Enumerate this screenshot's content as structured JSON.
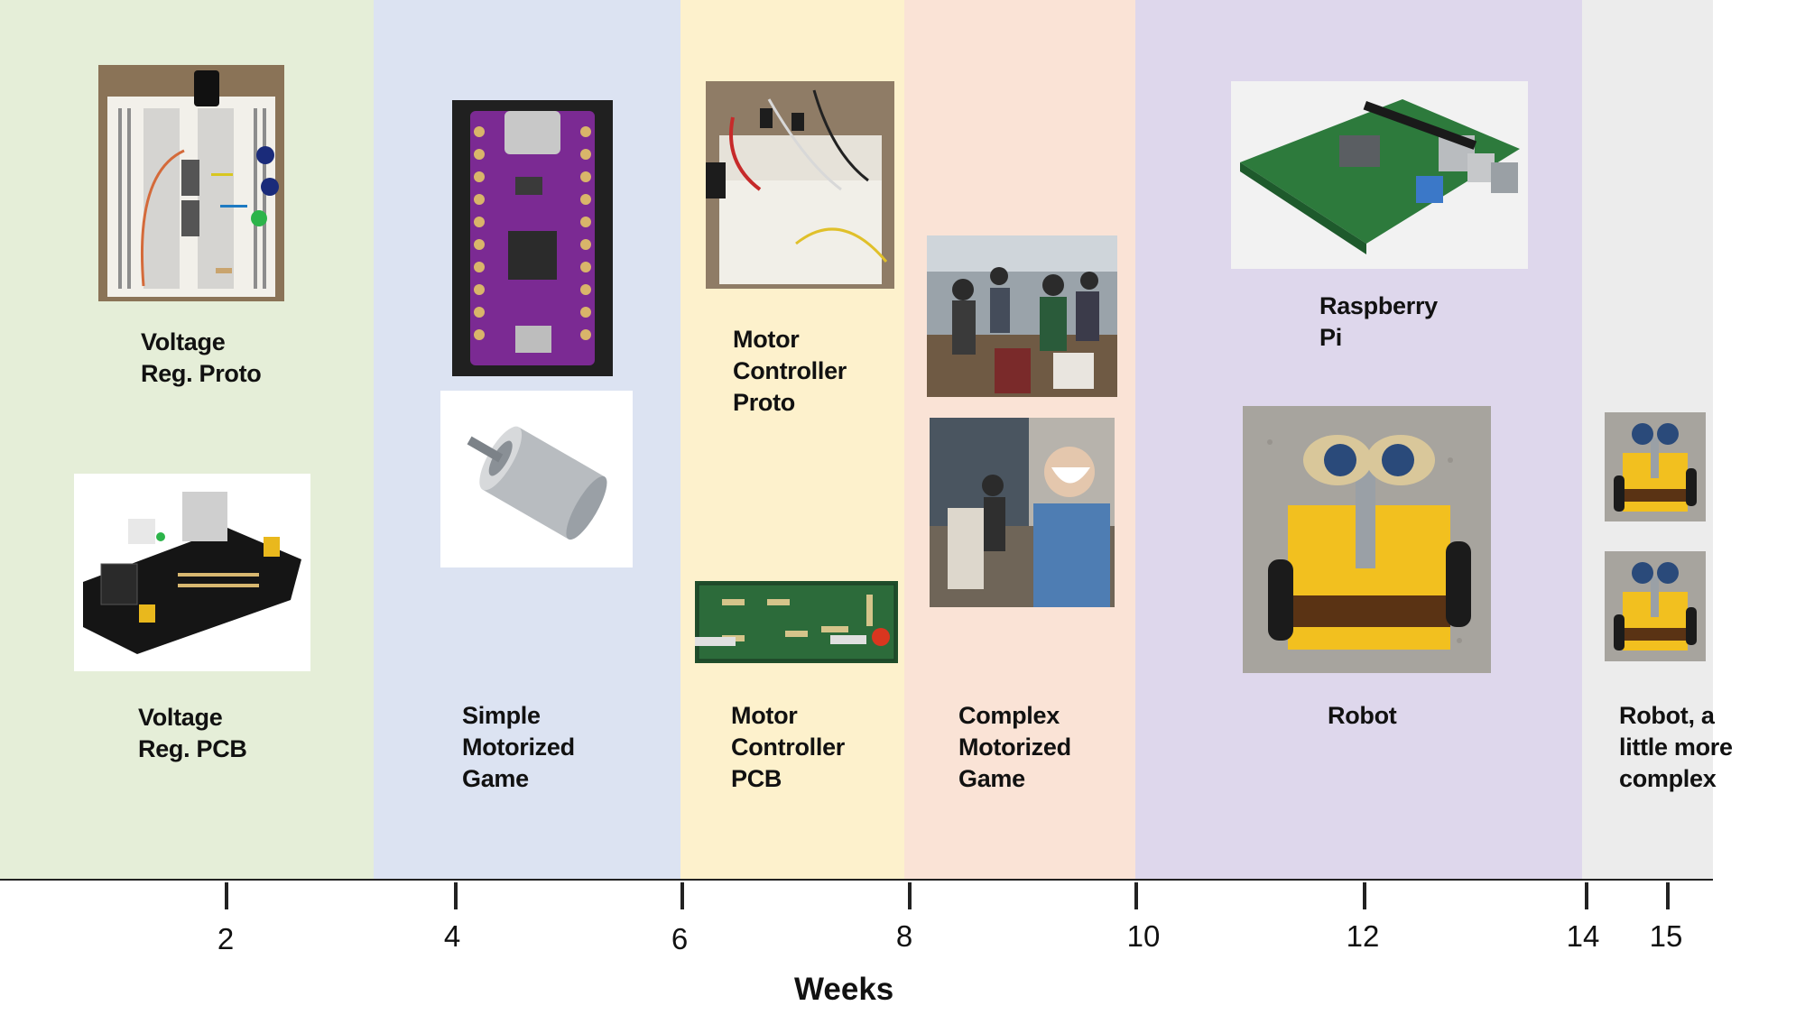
{
  "phases": [
    {
      "id": "voltage-reg",
      "color": "#e5eed8",
      "labels": [
        "Voltage\nReg. Proto",
        "Voltage\nReg. PCB"
      ]
    },
    {
      "id": "simple-game",
      "color": "#dce3f2",
      "labels": [
        "Simple\nMotorized\nGame"
      ]
    },
    {
      "id": "motor-controller",
      "color": "#fdf1cc",
      "labels": [
        "Motor\nController\nProto",
        "Motor\nController\nPCB"
      ]
    },
    {
      "id": "complex-game",
      "color": "#fae3d6",
      "labels": [
        "Complex\nMotorized\nGame"
      ]
    },
    {
      "id": "robot",
      "color": "#ded7ec",
      "labels": [
        "Raspberry\nPi",
        "Robot"
      ]
    },
    {
      "id": "complex-robot",
      "color": "#ececec",
      "labels": [
        "Robot, a\nlittle more\ncomplex"
      ]
    }
  ],
  "axis": {
    "title": "Weeks",
    "ticks": [
      "2",
      "4",
      "6",
      "8",
      "10",
      "12",
      "14",
      "15"
    ]
  }
}
